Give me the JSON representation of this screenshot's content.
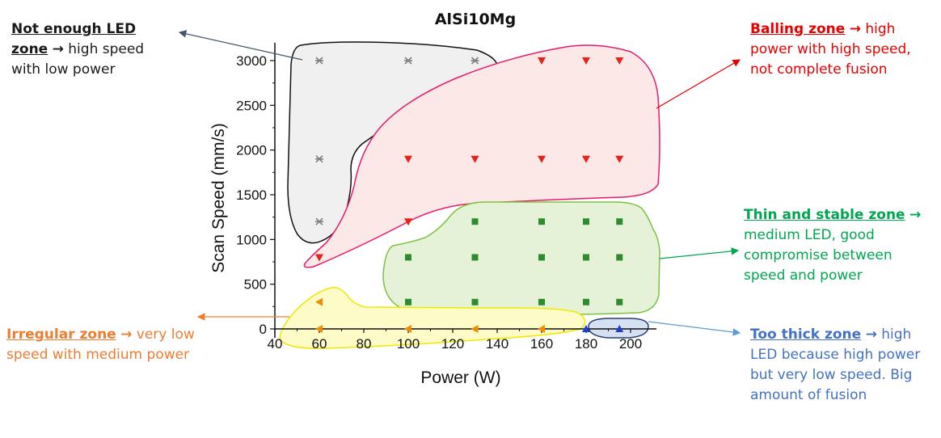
{
  "chart_data": {
    "type": "scatter",
    "title": "AlSi10Mg",
    "xlabel": "Power (W)",
    "ylabel": "Scan Speed (mm/s)",
    "xlim": [
      40,
      210
    ],
    "ylim": [
      -100,
      3200
    ],
    "xticks": [
      40,
      60,
      80,
      100,
      120,
      140,
      160,
      180,
      200
    ],
    "yticks": [
      0,
      500,
      1000,
      1500,
      2000,
      2500,
      3000
    ],
    "grid": false,
    "series": [
      {
        "zone": "not_enough_led",
        "marker": "x",
        "color": "#7f7f7f",
        "points": [
          [
            60,
            3000
          ],
          [
            100,
            3000
          ],
          [
            130,
            3000
          ],
          [
            60,
            1900
          ],
          [
            60,
            1200
          ]
        ]
      },
      {
        "zone": "balling",
        "marker": "triangle-down",
        "color": "#e8211a",
        "points": [
          [
            160,
            3000
          ],
          [
            180,
            3000
          ],
          [
            195,
            3000
          ],
          [
            100,
            1900
          ],
          [
            130,
            1900
          ],
          [
            160,
            1900
          ],
          [
            180,
            1900
          ],
          [
            195,
            1900
          ],
          [
            100,
            1200
          ],
          [
            60,
            800
          ]
        ]
      },
      {
        "zone": "thin_stable",
        "marker": "square",
        "color": "#2e8b2e",
        "points": [
          [
            130,
            1200
          ],
          [
            160,
            1200
          ],
          [
            180,
            1200
          ],
          [
            195,
            1200
          ],
          [
            100,
            800
          ],
          [
            130,
            800
          ],
          [
            160,
            800
          ],
          [
            180,
            800
          ],
          [
            195,
            800
          ],
          [
            100,
            300
          ],
          [
            130,
            300
          ],
          [
            160,
            300
          ],
          [
            180,
            300
          ],
          [
            195,
            300
          ]
        ]
      },
      {
        "zone": "irregular",
        "marker": "triangle-left",
        "color": "#f28c00",
        "points": [
          [
            60,
            300
          ],
          [
            60,
            0
          ],
          [
            100,
            0
          ],
          [
            130,
            0
          ],
          [
            160,
            0
          ]
        ]
      },
      {
        "zone": "too_thick",
        "marker": "triangle-up",
        "color": "#1f3fd1",
        "points": [
          [
            180,
            0
          ],
          [
            195,
            0
          ]
        ]
      }
    ]
  },
  "zones": {
    "not_enough": {
      "fill": "#f0f0f0",
      "stroke": "#111111"
    },
    "balling": {
      "fill": "#fde8e8",
      "stroke": "#e8196b"
    },
    "thin": {
      "fill": "#e6f2d8",
      "stroke": "#7cc242"
    },
    "irregular": {
      "fill": "#fdfbc7",
      "stroke": "#f1e800"
    },
    "thick": {
      "fill": "#d5e1f3",
      "stroke": "#2a3f6a"
    }
  },
  "annotations": {
    "not_enough": {
      "head": "Not enough LED zone",
      "arrow": "→",
      "body": " high speed with low power",
      "color": "#1a1a1a"
    },
    "balling": {
      "head": "Balling zone",
      "arrow": "→",
      "body": " high power with high speed, not complete fusion",
      "color": "#e60000"
    },
    "thin": {
      "head": "Thin and stable zone",
      "arrow": "→",
      "body": " medium LED, good compromise between speed and power",
      "color": "#00a650"
    },
    "irregular": {
      "head": "Irregular zone",
      "arrow": "→",
      "body": " very low speed with medium power",
      "color": "#ed7d31"
    },
    "thick": {
      "head": "Too thick zone",
      "arrow": "→",
      "body": " high LED because high power but very low speed. Big amount of fusion",
      "color": "#4472c4"
    }
  }
}
